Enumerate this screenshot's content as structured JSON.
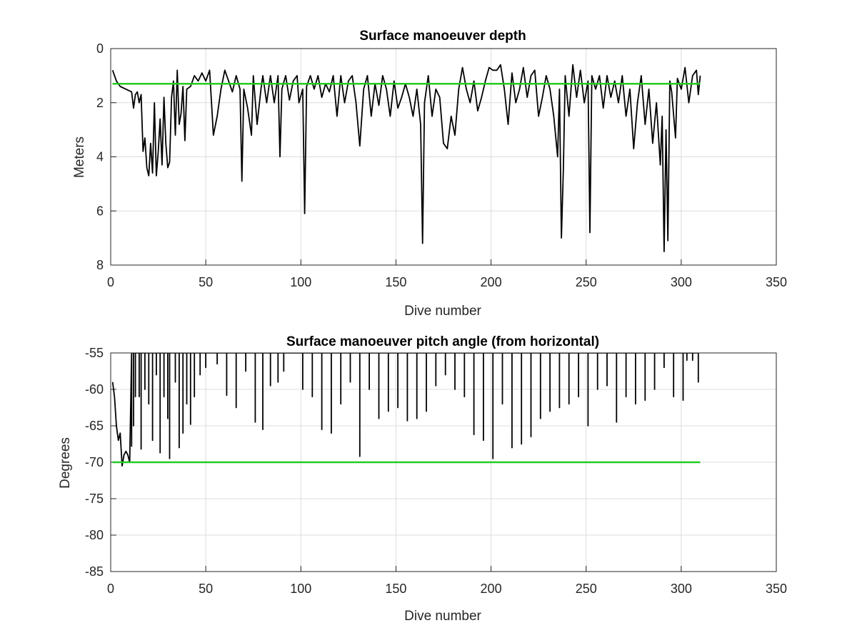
{
  "chart_data": [
    {
      "type": "line",
      "title": "Surface manoeuver depth",
      "xlabel": "Dive number",
      "ylabel": "Meters",
      "xlim": [
        0,
        350
      ],
      "ylim": [
        0,
        8
      ],
      "y_reversed": true,
      "grid": true,
      "xticks": [
        0,
        50,
        100,
        150,
        200,
        250,
        300,
        350
      ],
      "yticks": [
        0,
        2,
        4,
        6,
        8
      ],
      "reference_line": {
        "y": 1.3,
        "x_range": [
          1,
          310
        ],
        "color": "#22cc22"
      },
      "series": [
        {
          "color": "#000000",
          "points": [
            [
              1,
              0.8
            ],
            [
              3,
              1.2
            ],
            [
              5,
              1.4
            ],
            [
              8,
              1.5
            ],
            [
              11,
              1.6
            ],
            [
              12,
              2.2
            ],
            [
              13,
              1.7
            ],
            [
              14,
              1.6
            ],
            [
              15,
              2.0
            ],
            [
              16,
              1.7
            ],
            [
              17,
              3.8
            ],
            [
              18,
              3.3
            ],
            [
              19,
              4.4
            ],
            [
              20,
              4.7
            ],
            [
              21,
              3.5
            ],
            [
              22,
              4.6
            ],
            [
              23,
              2.0
            ],
            [
              24,
              4.7
            ],
            [
              25,
              3.8
            ],
            [
              26,
              2.6
            ],
            [
              27,
              4.3
            ],
            [
              28,
              1.8
            ],
            [
              29,
              3.5
            ],
            [
              30,
              4.4
            ],
            [
              31,
              4.2
            ],
            [
              32,
              1.8
            ],
            [
              33,
              1.2
            ],
            [
              34,
              3.2
            ],
            [
              35,
              0.8
            ],
            [
              36,
              2.8
            ],
            [
              37,
              2.4
            ],
            [
              38,
              1.4
            ],
            [
              39,
              3.4
            ],
            [
              40,
              1.5
            ],
            [
              42,
              1.4
            ],
            [
              44,
              1.0
            ],
            [
              46,
              1.2
            ],
            [
              48,
              0.9
            ],
            [
              50,
              1.2
            ],
            [
              52,
              0.8
            ],
            [
              54,
              3.2
            ],
            [
              56,
              2.5
            ],
            [
              58,
              1.5
            ],
            [
              60,
              0.8
            ],
            [
              62,
              1.2
            ],
            [
              64,
              1.6
            ],
            [
              66,
              1.0
            ],
            [
              68,
              1.5
            ],
            [
              69,
              4.9
            ],
            [
              70,
              1.5
            ],
            [
              72,
              2.2
            ],
            [
              74,
              3.2
            ],
            [
              75,
              1.0
            ],
            [
              77,
              2.8
            ],
            [
              79,
              1.5
            ],
            [
              80,
              1.0
            ],
            [
              82,
              2.0
            ],
            [
              84,
              1.0
            ],
            [
              86,
              2.0
            ],
            [
              88,
              1.0
            ],
            [
              89,
              4.0
            ],
            [
              90,
              1.5
            ],
            [
              92,
              1.0
            ],
            [
              94,
              1.9
            ],
            [
              96,
              1.2
            ],
            [
              98,
              1.0
            ],
            [
              99,
              2.0
            ],
            [
              101,
              1.5
            ],
            [
              102,
              6.1
            ],
            [
              103,
              1.4
            ],
            [
              105,
              1.0
            ],
            [
              107,
              1.5
            ],
            [
              109,
              1.0
            ],
            [
              111,
              1.8
            ],
            [
              113,
              1.3
            ],
            [
              115,
              1.6
            ],
            [
              117,
              1.0
            ],
            [
              119,
              2.5
            ],
            [
              121,
              1.0
            ],
            [
              123,
              2.0
            ],
            [
              125,
              1.2
            ],
            [
              127,
              1.0
            ],
            [
              129,
              2.0
            ],
            [
              131,
              3.6
            ],
            [
              133,
              1.5
            ],
            [
              135,
              1.0
            ],
            [
              137,
              2.5
            ],
            [
              139,
              1.3
            ],
            [
              141,
              2.1
            ],
            [
              143,
              1.0
            ],
            [
              145,
              1.5
            ],
            [
              147,
              2.5
            ],
            [
              149,
              1.2
            ],
            [
              151,
              2.2
            ],
            [
              153,
              1.8
            ],
            [
              155,
              1.3
            ],
            [
              157,
              1.8
            ],
            [
              159,
              2.5
            ],
            [
              161,
              1.5
            ],
            [
              163,
              2.8
            ],
            [
              164,
              7.2
            ],
            [
              165,
              2.0
            ],
            [
              167,
              1.0
            ],
            [
              169,
              2.5
            ],
            [
              171,
              1.5
            ],
            [
              173,
              1.8
            ],
            [
              175,
              3.5
            ],
            [
              177,
              3.7
            ],
            [
              179,
              2.5
            ],
            [
              181,
              3.2
            ],
            [
              183,
              1.5
            ],
            [
              185,
              0.7
            ],
            [
              187,
              1.5
            ],
            [
              189,
              2.0
            ],
            [
              191,
              1.2
            ],
            [
              193,
              2.3
            ],
            [
              195,
              1.8
            ],
            [
              197,
              1.2
            ],
            [
              199,
              0.7
            ],
            [
              201,
              0.8
            ],
            [
              203,
              0.8
            ],
            [
              205,
              0.6
            ],
            [
              207,
              1.5
            ],
            [
              209,
              2.8
            ],
            [
              211,
              0.9
            ],
            [
              213,
              2.0
            ],
            [
              215,
              1.5
            ],
            [
              217,
              0.7
            ],
            [
              219,
              1.8
            ],
            [
              221,
              1.0
            ],
            [
              223,
              0.8
            ],
            [
              225,
              2.5
            ],
            [
              227,
              1.8
            ],
            [
              229,
              1.0
            ],
            [
              231,
              1.5
            ],
            [
              233,
              2.5
            ],
            [
              235,
              4.0
            ],
            [
              236,
              1.5
            ],
            [
              237,
              7.0
            ],
            [
              238,
              4.5
            ],
            [
              239,
              1.0
            ],
            [
              241,
              2.5
            ],
            [
              243,
              0.6
            ],
            [
              245,
              1.8
            ],
            [
              247,
              0.8
            ],
            [
              249,
              2.0
            ],
            [
              251,
              1.2
            ],
            [
              252,
              6.8
            ],
            [
              253,
              1.0
            ],
            [
              255,
              1.5
            ],
            [
              257,
              1.0
            ],
            [
              259,
              2.2
            ],
            [
              261,
              1.0
            ],
            [
              263,
              1.8
            ],
            [
              265,
              1.2
            ],
            [
              267,
              2.0
            ],
            [
              269,
              1.0
            ],
            [
              271,
              2.5
            ],
            [
              273,
              1.5
            ],
            [
              275,
              3.7
            ],
            [
              277,
              2.0
            ],
            [
              279,
              1.0
            ],
            [
              281,
              2.8
            ],
            [
              283,
              1.5
            ],
            [
              285,
              3.5
            ],
            [
              287,
              2.0
            ],
            [
              289,
              4.3
            ],
            [
              290,
              2.5
            ],
            [
              291,
              7.5
            ],
            [
              292,
              3.0
            ],
            [
              293,
              7.1
            ],
            [
              294,
              1.2
            ],
            [
              295,
              1.6
            ],
            [
              297,
              3.3
            ],
            [
              298,
              1.1
            ],
            [
              300,
              1.5
            ],
            [
              302,
              0.7
            ],
            [
              304,
              2.0
            ],
            [
              306,
              1.0
            ],
            [
              308,
              0.8
            ],
            [
              309,
              1.7
            ],
            [
              310,
              1.0
            ]
          ]
        }
      ]
    },
    {
      "type": "line",
      "title": "Surface manoeuver pitch angle (from horizontal)",
      "xlabel": "Dive number",
      "ylabel": "Degrees",
      "xlim": [
        0,
        350
      ],
      "ylim": [
        -85,
        -55
      ],
      "grid": true,
      "xticks": [
        0,
        50,
        100,
        150,
        200,
        250,
        300,
        350
      ],
      "yticks": [
        -55,
        -60,
        -65,
        -70,
        -75,
        -80,
        -85
      ],
      "reference_line": {
        "y": -70,
        "x_range": [
          1,
          310
        ],
        "color": "#22cc22"
      },
      "series": [
        {
          "color": "#000000",
          "base_value": -55,
          "head": [
            [
              1,
              -59
            ],
            [
              2,
              -61
            ],
            [
              3,
              -65
            ],
            [
              4,
              -67
            ],
            [
              5,
              -66
            ],
            [
              6,
              -70.5
            ],
            [
              7,
              -69
            ],
            [
              8,
              -68.5
            ],
            [
              9,
              -69
            ],
            [
              10,
              -70
            ]
          ],
          "spikes": [
            [
              11,
              -67.8
            ],
            [
              12,
              -65
            ],
            [
              13,
              -61
            ],
            [
              14,
              -55
            ],
            [
              15,
              -61
            ],
            [
              16,
              -68.2
            ],
            [
              18,
              -60
            ],
            [
              20,
              -62
            ],
            [
              22,
              -67
            ],
            [
              24,
              -58
            ],
            [
              26,
              -68.7
            ],
            [
              28,
              -61
            ],
            [
              30,
              -64
            ],
            [
              31,
              -69.5
            ],
            [
              34,
              -59
            ],
            [
              36,
              -68
            ],
            [
              38,
              -66
            ],
            [
              40,
              -62
            ],
            [
              42,
              -64.8
            ],
            [
              44,
              -61
            ],
            [
              47,
              -58
            ],
            [
              50,
              -57
            ],
            [
              52,
              -55
            ],
            [
              56,
              -56.5
            ],
            [
              61,
              -60.8
            ],
            [
              66,
              -62.5
            ],
            [
              71,
              -57.5
            ],
            [
              76,
              -64.5
            ],
            [
              80,
              -65.5
            ],
            [
              84,
              -59.5
            ],
            [
              88,
              -59
            ],
            [
              91,
              -57.5
            ],
            [
              96,
              -55
            ],
            [
              101,
              -60
            ],
            [
              106,
              -61
            ],
            [
              111,
              -65.5
            ],
            [
              116,
              -66
            ],
            [
              121,
              -62
            ],
            [
              126,
              -59
            ],
            [
              131,
              -69.2
            ],
            [
              136,
              -60
            ],
            [
              141,
              -64
            ],
            [
              146,
              -63
            ],
            [
              151,
              -62.5
            ],
            [
              156,
              -64.3
            ],
            [
              161,
              -64
            ],
            [
              166,
              -63
            ],
            [
              171,
              -59.5
            ],
            [
              176,
              -58
            ],
            [
              181,
              -60
            ],
            [
              186,
              -61
            ],
            [
              191,
              -66.2
            ],
            [
              196,
              -67
            ],
            [
              201,
              -69.5
            ],
            [
              206,
              -62
            ],
            [
              211,
              -68
            ],
            [
              216,
              -67.5
            ],
            [
              221,
              -66.5
            ],
            [
              226,
              -64
            ],
            [
              231,
              -63
            ],
            [
              236,
              -62.5
            ],
            [
              241,
              -62
            ],
            [
              246,
              -61
            ],
            [
              251,
              -65
            ],
            [
              256,
              -60
            ],
            [
              261,
              -59.5
            ],
            [
              266,
              -64.5
            ],
            [
              271,
              -61
            ],
            [
              276,
              -62
            ],
            [
              281,
              -61.5
            ],
            [
              286,
              -60
            ],
            [
              291,
              -57
            ],
            [
              296,
              -61
            ],
            [
              301,
              -61.5
            ],
            [
              303,
              -56
            ],
            [
              306,
              -56
            ],
            [
              309,
              -59
            ]
          ]
        }
      ]
    }
  ]
}
